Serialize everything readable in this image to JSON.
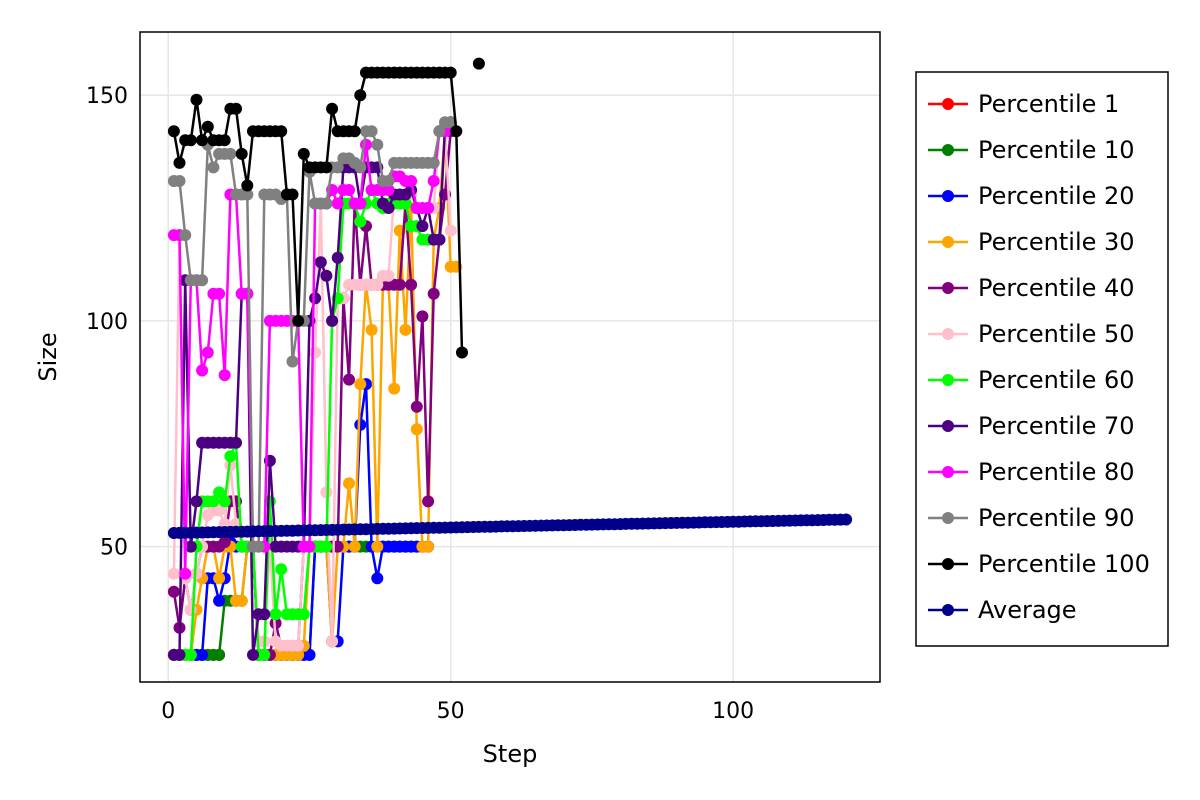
{
  "chart_data": {
    "type": "line",
    "title": "",
    "xlabel": "Step",
    "ylabel": "Size",
    "xlim": [
      -5,
      126
    ],
    "ylim": [
      20,
      164
    ],
    "xticks": [
      0,
      50,
      100
    ],
    "yticks": [
      50,
      100,
      150
    ],
    "grid": true,
    "legend_position": "right",
    "series": [
      {
        "name": "Percentile 1",
        "color": "#ff0000",
        "x": [
          1,
          2,
          3,
          4,
          5,
          6,
          7,
          8,
          9
        ],
        "y": [
          26,
          26,
          26,
          26,
          26,
          26,
          26,
          26,
          26
        ]
      },
      {
        "name": "Percentile 10",
        "color": "#008000",
        "x": [
          1,
          2,
          3,
          4,
          5,
          6,
          7,
          8,
          9,
          10,
          11,
          12,
          13,
          14,
          15,
          16,
          17,
          18,
          19,
          20,
          21,
          22,
          23,
          24,
          25,
          26,
          27,
          28,
          29,
          30,
          31,
          32,
          33,
          34,
          35,
          36,
          37,
          38,
          39,
          40,
          41,
          42,
          43,
          44,
          45,
          46
        ],
        "y": [
          26,
          26,
          26,
          26,
          26,
          26,
          26,
          26,
          26,
          38,
          38,
          38,
          38,
          50,
          50,
          26,
          26,
          26,
          26,
          26,
          26,
          26,
          26,
          26,
          26,
          50,
          50,
          50,
          50,
          50,
          50,
          50,
          50,
          50,
          50,
          50,
          50,
          50,
          50,
          50,
          50,
          50,
          50,
          50,
          50,
          50
        ]
      },
      {
        "name": "Percentile 20",
        "color": "#0000ff",
        "x": [
          1,
          2,
          3,
          4,
          5,
          6,
          7,
          8,
          9,
          10,
          11,
          12,
          13,
          14,
          15,
          16,
          17,
          18,
          19,
          20,
          21,
          22,
          23,
          24,
          25,
          26,
          27,
          28,
          29,
          30,
          31,
          32,
          33,
          34,
          35,
          36,
          37,
          38,
          39,
          40,
          41,
          42,
          43,
          44,
          45,
          46
        ],
        "y": [
          26,
          26,
          26,
          26,
          26,
          26,
          43,
          43,
          38,
          43,
          51,
          50,
          50,
          50,
          50,
          26,
          26,
          26,
          26,
          26,
          26,
          26,
          26,
          26,
          26,
          50,
          50,
          50,
          29,
          29,
          50,
          50,
          50,
          77,
          86,
          50,
          43,
          50,
          50,
          50,
          50,
          50,
          50,
          50,
          50,
          50
        ]
      },
      {
        "name": "Percentile 30",
        "color": "#ffa500",
        "x": [
          1,
          2,
          3,
          4,
          5,
          6,
          7,
          8,
          9,
          10,
          11,
          12,
          13,
          14,
          15,
          16,
          17,
          18,
          19,
          20,
          21,
          22,
          23,
          24,
          25,
          26,
          27,
          28,
          29,
          30,
          31,
          32,
          33,
          34,
          35,
          36,
          37,
          38,
          39,
          40,
          41,
          42,
          43,
          44,
          45,
          46,
          47,
          48,
          49,
          50,
          51
        ],
        "y": [
          26,
          26,
          26,
          26,
          36,
          43,
          50,
          50,
          43,
          50,
          50,
          38,
          38,
          50,
          50,
          26,
          26,
          26,
          26,
          26,
          26,
          26,
          26,
          28,
          50,
          50,
          50,
          50,
          29,
          50,
          50,
          64,
          50,
          86,
          108,
          98,
          50,
          108,
          108,
          85,
          120,
          98,
          125,
          76,
          50,
          50,
          118,
          125,
          142,
          112,
          112
        ]
      },
      {
        "name": "Percentile 40",
        "color": "#800080",
        "x": [
          1,
          2,
          3,
          4,
          5,
          6,
          7,
          8,
          9,
          10,
          11,
          12,
          13,
          14,
          15,
          16,
          17,
          18,
          19,
          20,
          21,
          22,
          23,
          24,
          25,
          26,
          27,
          28,
          29,
          30,
          31,
          32,
          33,
          34,
          35,
          36,
          37,
          38,
          39,
          40,
          41,
          42,
          43,
          44,
          45,
          46,
          47,
          48,
          49,
          50
        ],
        "y": [
          40,
          32,
          43,
          36,
          44,
          50,
          50,
          50,
          50,
          51,
          60,
          60,
          50,
          50,
          50,
          26,
          26,
          26,
          33,
          28,
          28,
          28,
          28,
          50,
          50,
          50,
          50,
          50,
          50,
          50,
          105,
          87,
          126,
          108,
          121,
          108,
          108,
          108,
          108,
          108,
          108,
          126,
          108,
          81,
          101,
          60,
          106,
          118,
          128,
          142
        ]
      },
      {
        "name": "Percentile 50",
        "color": "#ffc0cb",
        "x": [
          1,
          2,
          3,
          4,
          5,
          6,
          7,
          8,
          9,
          10,
          11,
          12,
          13,
          14,
          15,
          16,
          17,
          18,
          19,
          20,
          21,
          22,
          23,
          24,
          25,
          26,
          27,
          28,
          29,
          30,
          31,
          32,
          33,
          34,
          35,
          36,
          37,
          38,
          39,
          40,
          41,
          42,
          43,
          44,
          45,
          46,
          47,
          48,
          49,
          50
        ],
        "y": [
          44,
          119,
          43,
          36,
          44,
          50,
          57,
          58,
          58,
          55,
          68,
          55,
          50,
          50,
          50,
          29,
          29,
          50,
          29,
          28,
          28,
          28,
          28,
          50,
          50,
          93,
          126,
          62,
          29,
          105,
          105,
          108,
          108,
          108,
          108,
          108,
          108,
          110,
          110,
          128,
          128,
          128,
          128,
          125,
          125,
          125,
          125,
          142,
          142,
          120
        ]
      },
      {
        "name": "Percentile 60",
        "color": "#00ff00",
        "x": [
          1,
          2,
          3,
          4,
          5,
          6,
          7,
          8,
          9,
          10,
          11,
          12,
          13,
          14,
          15,
          16,
          17,
          18,
          19,
          20,
          21,
          22,
          23,
          24,
          25,
          26,
          27,
          28,
          29,
          30,
          31,
          32,
          33,
          34,
          35,
          36,
          37,
          38,
          39,
          40,
          41,
          42,
          43,
          44,
          45,
          46
        ],
        "y": [
          26,
          26,
          26,
          26,
          50,
          60,
          60,
          60,
          62,
          60,
          70,
          73,
          50,
          50,
          50,
          26,
          26,
          60,
          35,
          45,
          35,
          35,
          35,
          35,
          50,
          50,
          50,
          50,
          100,
          105,
          126,
          126,
          126,
          122,
          126,
          129,
          126,
          125,
          126,
          126,
          126,
          126,
          121,
          121,
          118,
          118
        ]
      },
      {
        "name": "Percentile 70",
        "color": "#4b0082",
        "x": [
          1,
          2,
          3,
          4,
          5,
          6,
          7,
          8,
          9,
          10,
          11,
          12,
          13,
          14,
          15,
          16,
          17,
          18,
          19,
          20,
          21,
          22,
          23,
          24,
          25,
          26,
          27,
          28,
          29,
          30,
          31,
          32,
          33,
          34,
          35,
          36,
          37,
          38,
          39,
          40,
          41,
          42,
          43,
          44,
          45,
          46,
          47,
          48,
          49,
          50
        ],
        "y": [
          26,
          26,
          109,
          50,
          60,
          73,
          73,
          73,
          73,
          73,
          73,
          73,
          106,
          106,
          26,
          35,
          35,
          69,
          50,
          50,
          50,
          50,
          50,
          50,
          100,
          105,
          113,
          110,
          100,
          114,
          134,
          134,
          134,
          126,
          134,
          134,
          134,
          126,
          125,
          128,
          128,
          128,
          129,
          125,
          121,
          125,
          118,
          118,
          143,
          144
        ]
      },
      {
        "name": "Percentile 80",
        "color": "#ff00ff",
        "x": [
          1,
          2,
          3,
          4,
          5,
          6,
          7,
          8,
          9,
          10,
          11,
          12,
          13,
          14,
          15,
          16,
          17,
          18,
          19,
          20,
          21,
          22,
          23,
          24,
          25,
          26,
          27,
          28,
          29,
          30,
          31,
          32,
          33,
          34,
          35,
          36,
          37,
          38,
          39,
          40,
          41,
          42,
          43,
          44,
          45,
          46,
          47,
          48,
          49,
          50
        ],
        "y": [
          119,
          119,
          44,
          109,
          109,
          89,
          93,
          106,
          106,
          88,
          128,
          128,
          106,
          106,
          50,
          50,
          50,
          100,
          100,
          100,
          100,
          100,
          100,
          50,
          50,
          126,
          126,
          126,
          129,
          126,
          129,
          129,
          126,
          126,
          139,
          129,
          129,
          129,
          129,
          132,
          132,
          131,
          131,
          125,
          125,
          125,
          131,
          142,
          142,
          144
        ]
      },
      {
        "name": "Percentile 90",
        "color": "#808080",
        "x": [
          1,
          2,
          3,
          4,
          5,
          6,
          7,
          8,
          9,
          10,
          11,
          12,
          13,
          14,
          15,
          16,
          17,
          18,
          19,
          20,
          21,
          22,
          23,
          24,
          25,
          26,
          27,
          28,
          29,
          30,
          31,
          32,
          33,
          34,
          35,
          36,
          37,
          38,
          39,
          40,
          41,
          42,
          43,
          44,
          45,
          46,
          47,
          48,
          49,
          50
        ],
        "y": [
          131,
          131,
          119,
          109,
          109,
          109,
          139,
          134,
          137,
          137,
          137,
          128,
          128,
          128,
          50,
          50,
          128,
          128,
          128,
          127,
          128,
          91,
          100,
          100,
          133,
          126,
          126,
          126,
          134,
          134,
          136,
          136,
          135,
          134,
          142,
          142,
          139,
          131,
          131,
          135,
          135,
          135,
          135,
          135,
          135,
          135,
          135,
          142,
          144,
          144
        ]
      },
      {
        "name": "Percentile 100",
        "color": "#000000",
        "x": [
          1,
          2,
          3,
          4,
          5,
          6,
          7,
          8,
          9,
          10,
          11,
          12,
          13,
          14,
          15,
          16,
          17,
          18,
          19,
          20,
          21,
          22,
          23,
          24,
          25,
          26,
          27,
          28,
          29,
          30,
          31,
          32,
          33,
          34,
          35,
          36,
          37,
          38,
          39,
          40,
          41,
          42,
          43,
          44,
          45,
          46,
          47,
          48,
          49,
          50,
          51,
          52
        ],
        "y": [
          142,
          135,
          140,
          140,
          149,
          140,
          143,
          140,
          140,
          140,
          147,
          147,
          137,
          130,
          142,
          142,
          142,
          142,
          142,
          142,
          128,
          128,
          100,
          137,
          134,
          134,
          134,
          134,
          147,
          142,
          142,
          142,
          142,
          150,
          155,
          155,
          155,
          155,
          155,
          155,
          155,
          155,
          155,
          155,
          155,
          155,
          155,
          155,
          155,
          155,
          142,
          93
        ]
      },
      {
        "name": "",
        "color": "#000000",
        "x": [
          55
        ],
        "y": [
          157
        ]
      },
      {
        "name": "Average",
        "color": "#00008b",
        "x_start": 1,
        "x_end": 120,
        "y_start": 53,
        "y_end": 56
      }
    ]
  }
}
